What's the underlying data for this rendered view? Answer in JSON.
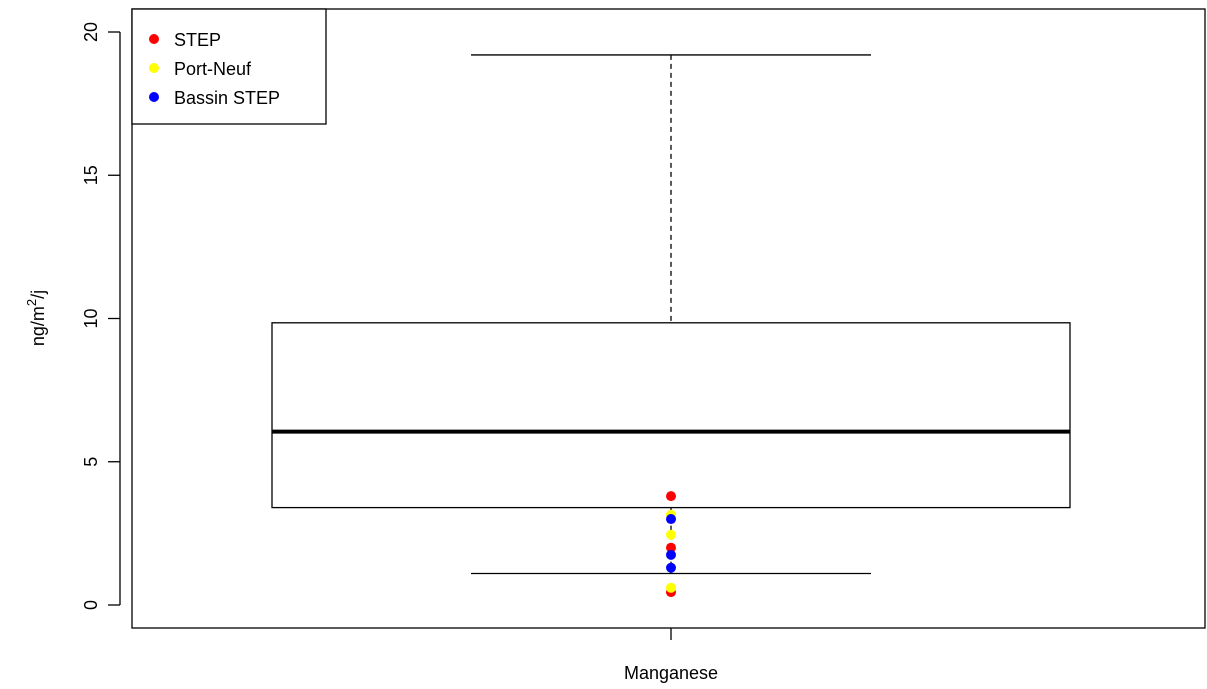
{
  "chart_data": {
    "type": "boxplot",
    "categories": [
      "Manganese"
    ],
    "ylabel_parts": {
      "a": "ng",
      "b": "m",
      "sup": "2",
      "c": "j"
    },
    "ylim": [
      0,
      20
    ],
    "yticks": [
      0,
      5,
      10,
      15,
      20
    ],
    "grid": false,
    "legend_position": "top-left",
    "box": {
      "min": 1.1,
      "q1": 3.4,
      "median": 6.05,
      "q3": 9.85,
      "max": 19.2
    },
    "series": [
      {
        "name": "STEP",
        "color": "#ff0000",
        "values": [
          0.45,
          2.0,
          3.8
        ]
      },
      {
        "name": "Port-Neuf",
        "color": "#ffff00",
        "values": [
          0.6,
          2.45,
          3.15
        ]
      },
      {
        "name": "Bassin STEP",
        "color": "#0000ff",
        "values": [
          1.3,
          1.75,
          3.0
        ]
      }
    ]
  }
}
